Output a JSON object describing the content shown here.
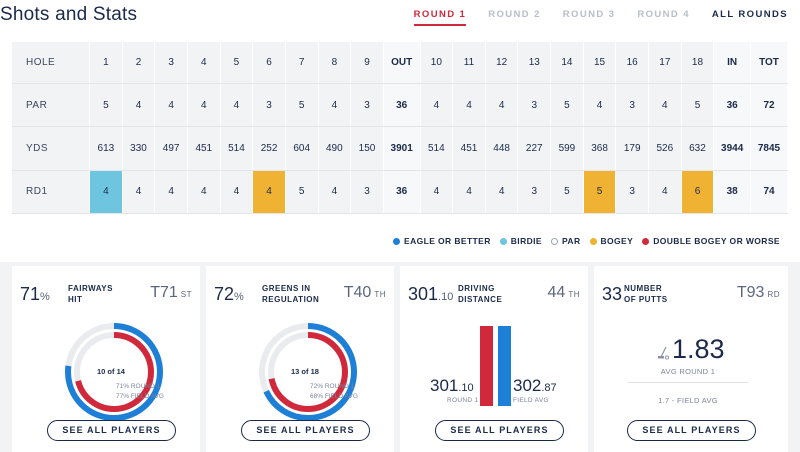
{
  "header": {
    "title": "Shots and Stats",
    "rounds": [
      "ROUND 1",
      "ROUND 2",
      "ROUND 3",
      "ROUND 4"
    ],
    "all_rounds": "ALL ROUNDS",
    "active_round": "ROUND 1"
  },
  "scorecard": {
    "hole_label": "HOLE",
    "holes": [
      "1",
      "2",
      "3",
      "4",
      "5",
      "6",
      "7",
      "8",
      "9",
      "OUT",
      "10",
      "11",
      "12",
      "13",
      "14",
      "15",
      "16",
      "17",
      "18",
      "IN",
      "TOT"
    ],
    "rows": [
      {
        "label": "PAR",
        "cells": [
          "5",
          "4",
          "4",
          "4",
          "4",
          "3",
          "5",
          "4",
          "3",
          "36",
          "4",
          "4",
          "4",
          "3",
          "5",
          "4",
          "3",
          "4",
          "5",
          "36",
          "72"
        ]
      },
      {
        "label": "YDS",
        "cells": [
          "613",
          "330",
          "497",
          "451",
          "514",
          "252",
          "604",
          "490",
          "150",
          "3901",
          "514",
          "451",
          "448",
          "227",
          "599",
          "368",
          "179",
          "526",
          "632",
          "3944",
          "7845"
        ]
      },
      {
        "label": "RD1",
        "cells": [
          "4",
          "4",
          "4",
          "4",
          "4",
          "4",
          "5",
          "4",
          "3",
          "36",
          "4",
          "4",
          "4",
          "3",
          "5",
          "5",
          "3",
          "4",
          "6",
          "38",
          "74"
        ],
        "results": [
          "birdie",
          "",
          "",
          "",
          "",
          "bogey",
          "",
          "",
          "",
          "",
          "",
          "",
          "",
          "",
          "",
          "bogey",
          "",
          "",
          "bogey",
          "",
          ""
        ]
      }
    ]
  },
  "legend": [
    {
      "label": "EAGLE OR BETTER",
      "color": "#1d7fd6"
    },
    {
      "label": "BIRDIE",
      "color": "#6ec5df"
    },
    {
      "label": "PAR",
      "color": "#ffffff"
    },
    {
      "label": "BOGEY",
      "color": "#efb233"
    },
    {
      "label": "DOUBLE BOGEY OR WORSE",
      "color": "#d0293b"
    }
  ],
  "stats": {
    "fairways": {
      "value": "71",
      "unit": "%",
      "label_line1": "FAIRWAYS",
      "label_line2": "HIT",
      "rank": "T71",
      "rank_suffix": "ST",
      "ring_text": "10 of 14",
      "round_caption": "71% ROUND 1",
      "field_caption": "77% FIELD AVG",
      "round_fraction": 0.71,
      "field_fraction": 0.77,
      "button": "SEE ALL PLAYERS"
    },
    "greens": {
      "value": "72",
      "unit": "%",
      "label_line1": "GREENS IN",
      "label_line2": "REGULATION",
      "rank": "T40",
      "rank_suffix": "TH",
      "ring_text": "13 of 18",
      "round_caption": "72% ROUND 1",
      "field_caption": "68% FIELD AVG",
      "round_fraction": 0.72,
      "field_fraction": 0.68,
      "button": "SEE ALL PLAYERS"
    },
    "driving": {
      "value": "301",
      "value_dec": ".10",
      "label_line1": "DRIVING",
      "label_line2": "DISTANCE",
      "rank": "44",
      "rank_suffix": "TH",
      "round_value": "301",
      "round_dec": ".10",
      "round_caption": "ROUND 1",
      "field_value": "302",
      "field_dec": ".87",
      "field_caption": "FIELD AVG",
      "button": "SEE ALL PLAYERS"
    },
    "putts": {
      "value": "33",
      "label_line1": "NUMBER",
      "label_line2": "OF PUTTS",
      "rank": "T93",
      "rank_suffix": "RD",
      "avg": "1.83",
      "avg_caption": "AVG ROUND 1",
      "field_caption": "1.7 - FIELD AVG",
      "button": "SEE ALL PLAYERS"
    }
  },
  "colors": {
    "red": "#d0293b",
    "blue": "#1d7fd6",
    "navy": "#1b2a4a"
  }
}
